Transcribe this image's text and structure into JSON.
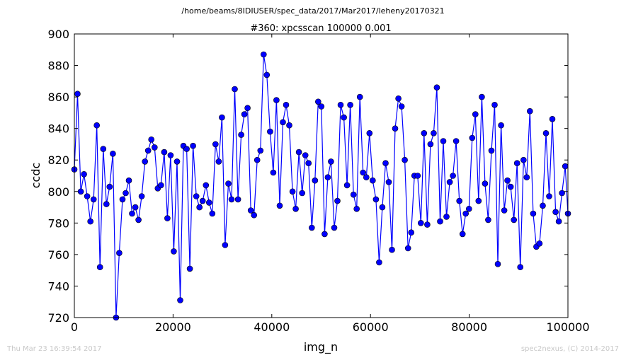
{
  "suptitle": "/home/beams/8IDIUSER/spec_data/2017/Mar2017/leheny20170321",
  "footer": {
    "timestamp": "Thu Mar 23 16:39:54 2017",
    "credit": "spec2nexus, (C) 2014-2017"
  },
  "chart_data": {
    "type": "line",
    "title": "#360: xpcsscan 100000 0.001",
    "xlabel": "img_n",
    "ylabel": "ccdc",
    "xlim": [
      0,
      100000
    ],
    "ylim": [
      720,
      900
    ],
    "xticks": [
      0,
      20000,
      40000,
      60000,
      80000,
      100000
    ],
    "yticks": [
      720,
      740,
      760,
      780,
      800,
      820,
      840,
      860,
      880,
      900
    ],
    "grid": false,
    "legend": "none",
    "series": [
      {
        "color": "#0000ff",
        "marker": "circle",
        "x": [
          0,
          650,
          1300,
          1950,
          2600,
          3250,
          3900,
          4550,
          5200,
          5850,
          6500,
          7150,
          7800,
          8450,
          9100,
          9750,
          10400,
          11050,
          11700,
          12350,
          13000,
          13650,
          14300,
          14950,
          15600,
          16250,
          16900,
          17550,
          18200,
          18850,
          19500,
          20150,
          20800,
          21450,
          22100,
          22750,
          23400,
          24050,
          24700,
          25350,
          26000,
          26650,
          27300,
          27950,
          28600,
          29250,
          29900,
          30550,
          31200,
          31850,
          32500,
          33150,
          33800,
          34450,
          35100,
          35750,
          36400,
          37050,
          37700,
          38350,
          39000,
          39650,
          40300,
          40950,
          41600,
          42250,
          42900,
          43550,
          44200,
          44850,
          45500,
          46150,
          46800,
          47450,
          48100,
          48750,
          49400,
          50050,
          50700,
          51350,
          52000,
          52650,
          53300,
          53950,
          54600,
          55250,
          55900,
          56550,
          57200,
          57850,
          58500,
          59150,
          59800,
          60450,
          61100,
          61750,
          62400,
          63050,
          63700,
          64350,
          65000,
          65650,
          66300,
          66950,
          67600,
          68250,
          68900,
          69550,
          70200,
          70850,
          71500,
          72150,
          72800,
          73450,
          74100,
          74750,
          75400,
          76050,
          76700,
          77350,
          78000,
          78650,
          79300,
          79950,
          80600,
          81250,
          81900,
          82550,
          83200,
          83850,
          84500,
          85150,
          85800,
          86450,
          87100,
          87750,
          88400,
          89050,
          89700,
          90350,
          91000,
          91650,
          92300,
          92950,
          93600,
          94250,
          94900,
          95550,
          96200,
          96850,
          97500,
          98150,
          98800,
          99450,
          100000
        ],
        "y": [
          814,
          862,
          800,
          811,
          797,
          781,
          795,
          842,
          752,
          827,
          792,
          803,
          824,
          720,
          761,
          795,
          799,
          807,
          786,
          790,
          782,
          797,
          819,
          826,
          833,
          828,
          802,
          804,
          825,
          783,
          823,
          762,
          819,
          731,
          829,
          827,
          751,
          829,
          797,
          790,
          794,
          804,
          793,
          786,
          830,
          819,
          847,
          766,
          805,
          795,
          865,
          795,
          836,
          849,
          853,
          788,
          785,
          820,
          826,
          887,
          874,
          838,
          812,
          858,
          791,
          844,
          855,
          842,
          800,
          789,
          825,
          799,
          823,
          818,
          777,
          807,
          857,
          854,
          773,
          809,
          819,
          777,
          794,
          855,
          847,
          804,
          855,
          798,
          789,
          860,
          812,
          809,
          837,
          807,
          795,
          755,
          790,
          818,
          806,
          763,
          840,
          859,
          854,
          820,
          764,
          774,
          810,
          810,
          780,
          837,
          779,
          830,
          837,
          866,
          781,
          832,
          784,
          806,
          810,
          832,
          794,
          773,
          786,
          789,
          834,
          849,
          794,
          860,
          805,
          782,
          826,
          855,
          754,
          842,
          788,
          807,
          803,
          782,
          818,
          752,
          820,
          809,
          851,
          786,
          765,
          767,
          791,
          837,
          797,
          846,
          787,
          781,
          799,
          816,
          786
        ]
      }
    ]
  }
}
